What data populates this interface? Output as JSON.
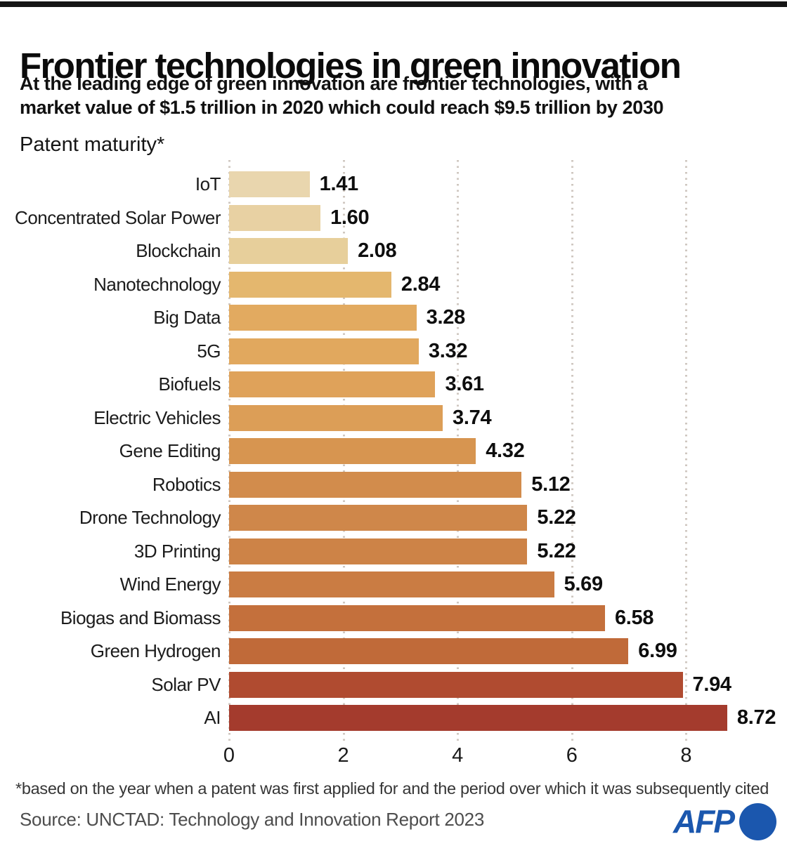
{
  "header": {
    "title": "Frontier technologies in green innovation",
    "subtitle_line1": "At the leading edge of green innovation are frontier technologies, with a",
    "subtitle_line2": "market value of $1.5 trillion in 2020 which could reach $9.5 trillion by 2030",
    "axis_caption": "Patent maturity*"
  },
  "chart_data": {
    "type": "bar",
    "orientation": "horizontal",
    "title": "Patent maturity*",
    "xlabel": "",
    "ylabel": "",
    "xlim": [
      0,
      9.3
    ],
    "x_ticks": [
      0,
      2,
      4,
      6,
      8
    ],
    "grid": "dotted-vertical",
    "categories": [
      "IoT",
      "Concentrated Solar Power",
      "Blockchain",
      "Nanotechnology",
      "Big Data",
      "5G",
      "Biofuels",
      "Electric Vehicles",
      "Gene Editing",
      "Robotics",
      "Drone Technology",
      "3D Printing",
      "Wind Energy",
      "Biogas and Biomass",
      "Green Hydrogen",
      "Solar PV",
      "AI"
    ],
    "values": [
      1.41,
      1.6,
      2.08,
      2.84,
      3.28,
      3.32,
      3.61,
      3.74,
      4.32,
      5.12,
      5.22,
      5.22,
      5.69,
      6.58,
      6.99,
      7.94,
      8.72
    ],
    "value_labels": [
      "1.41",
      "1.60",
      "2.08",
      "2.84",
      "3.28",
      "3.32",
      "3.61",
      "3.74",
      "4.32",
      "5.12",
      "5.22",
      "5.22",
      "5.69",
      "6.58",
      "6.99",
      "7.94",
      "8.72"
    ],
    "bar_colors": [
      "#e9d6ae",
      "#e8d1a3",
      "#e7cf9b",
      "#e4b76e",
      "#e2aa60",
      "#e1a85e",
      "#dfa25a",
      "#dc9e57",
      "#d79550",
      "#d28c4c",
      "#cf874a",
      "#cd8347",
      "#ca7c43",
      "#c4703c",
      "#c06a39",
      "#b04b30",
      "#a43b2d"
    ],
    "gridline_color": "#cfc7c0"
  },
  "footer": {
    "footnote": "*based on the year when a patent was first applied for and the period over which it was subsequently cited",
    "source": "Source: UNCTAD: Technology and Innovation Report 2023",
    "logo_text": "AFP"
  },
  "colors": {
    "logo_blue": "#1b57ae",
    "top_bar": "#151515"
  }
}
